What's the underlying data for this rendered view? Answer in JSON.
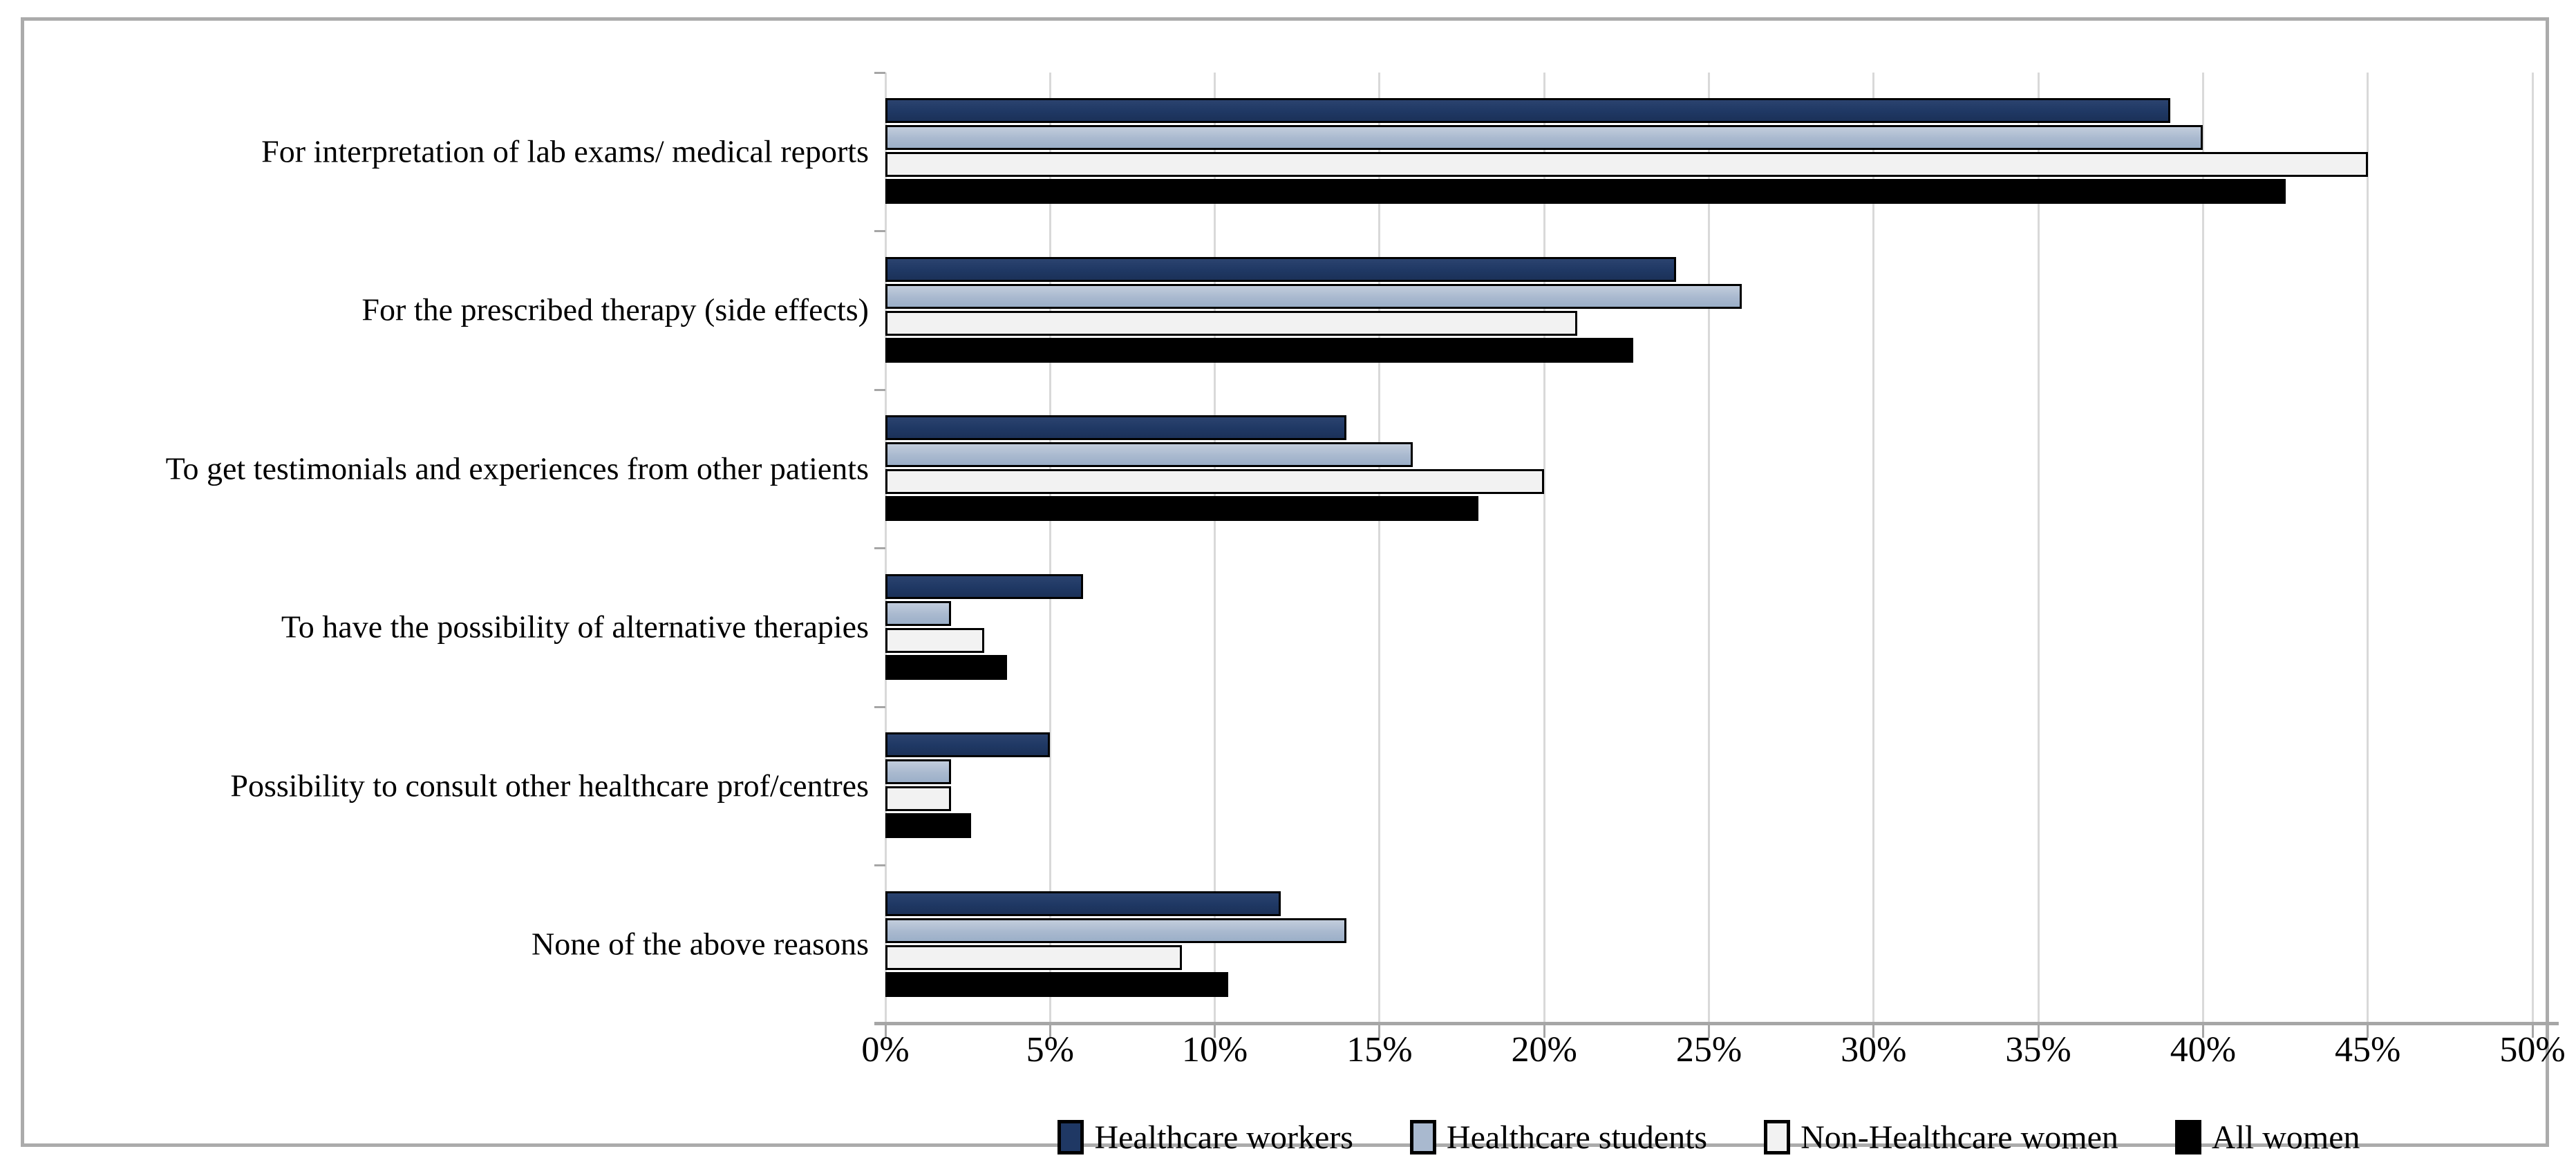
{
  "figure": {
    "background": "#ffffff",
    "frame_border_color": "#ababab"
  },
  "chart_data": {
    "type": "bar",
    "orientation": "horizontal",
    "title": "",
    "categories": [
      "For interpretation of lab exams/ medical reports",
      "For the prescribed therapy (side effects)",
      "To get testimonials and experiences from other patients",
      "To have the possibility of alternative therapies",
      "Possibility to consult other healthcare prof/centres",
      "None of the above reasons"
    ],
    "series": [
      {
        "name": "Healthcare workers",
        "color": "#1F3864",
        "values": [
          39,
          24,
          14,
          6,
          5,
          12
        ]
      },
      {
        "name": "Healthcare students",
        "color": "#A9B9CF",
        "values": [
          40,
          26,
          16,
          2,
          2,
          14
        ]
      },
      {
        "name": "Non-Healthcare women",
        "color": "#F2F2F2",
        "values": [
          45,
          21,
          20,
          3,
          2,
          9
        ]
      },
      {
        "name": "All women",
        "color": "#000000",
        "values": [
          42.5,
          22.7,
          18,
          3.7,
          2.6,
          10.4
        ]
      }
    ],
    "xlim": [
      0,
      50
    ],
    "x_tick_step": 5,
    "x_tick_labels": [
      "0%",
      "5%",
      "10%",
      "15%",
      "20%",
      "25%",
      "30%",
      "35%",
      "40%",
      "45%",
      "50%"
    ],
    "grid": true,
    "gridline_color": "#D9D9D9",
    "axis_color": "#A6A6A6",
    "bar_border_color": "#000000",
    "legend_position": "bottom"
  }
}
